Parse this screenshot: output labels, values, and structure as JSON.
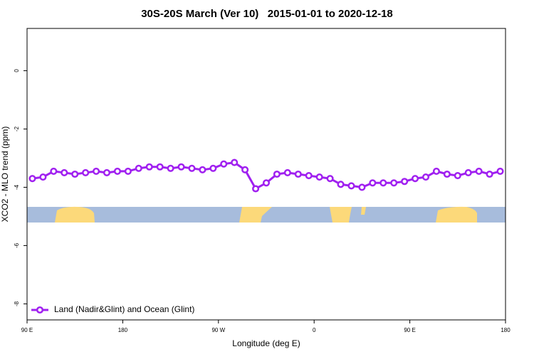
{
  "chart_data": {
    "type": "line",
    "title": "30S-20S March (Ver 10)   2015-01-01 to 2020-12-18",
    "x_label": "Longitude (deg E)",
    "y_label": "XCO2 - MLO trend (ppm)",
    "x": [
      95,
      105,
      115,
      125,
      135,
      145,
      155,
      165,
      175,
      185,
      195,
      205,
      215,
      225,
      235,
      245,
      255,
      265,
      275,
      285,
      295,
      305,
      315,
      325,
      335,
      345,
      355,
      365,
      375,
      385,
      395,
      405,
      415,
      425,
      435,
      445,
      455,
      465,
      475,
      485,
      495,
      505,
      515,
      525,
      535
    ],
    "series": [
      {
        "name": "Land (Nadir&Glint) and Ocean (Glint)",
        "color": "#a020f0",
        "values": [
          -3.7,
          -3.65,
          -3.45,
          -3.5,
          -3.55,
          -3.5,
          -3.45,
          -3.5,
          -3.45,
          -3.45,
          -3.35,
          -3.3,
          -3.3,
          -3.35,
          -3.3,
          -3.35,
          -3.4,
          -3.35,
          -3.2,
          -3.15,
          -3.4,
          -4.05,
          -3.85,
          -3.55,
          -3.5,
          -3.55,
          -3.6,
          -3.65,
          -3.7,
          -3.9,
          -3.95,
          -4.0,
          -3.85,
          -3.85,
          -3.85,
          -3.8,
          -3.7,
          -3.65,
          -3.45,
          -3.55,
          -3.6,
          -3.5,
          -3.45,
          -3.55,
          -3.45
        ]
      }
    ],
    "xlim": [
      90,
      540
    ],
    "xticks": [
      {
        "value": 90,
        "label": "90 E"
      },
      180,
      {
        "value": 270,
        "label": "90 W"
      },
      {
        "value": 360,
        "label": "0"
      },
      {
        "value": 450,
        "label": "90 E"
      },
      {
        "value": 540,
        "label": "180"
      }
    ],
    "ylim": [
      -8.55,
      1.45
    ],
    "yticks": [
      0,
      -2,
      -4,
      -6,
      -8
    ],
    "legend": "bottomleft"
  }
}
